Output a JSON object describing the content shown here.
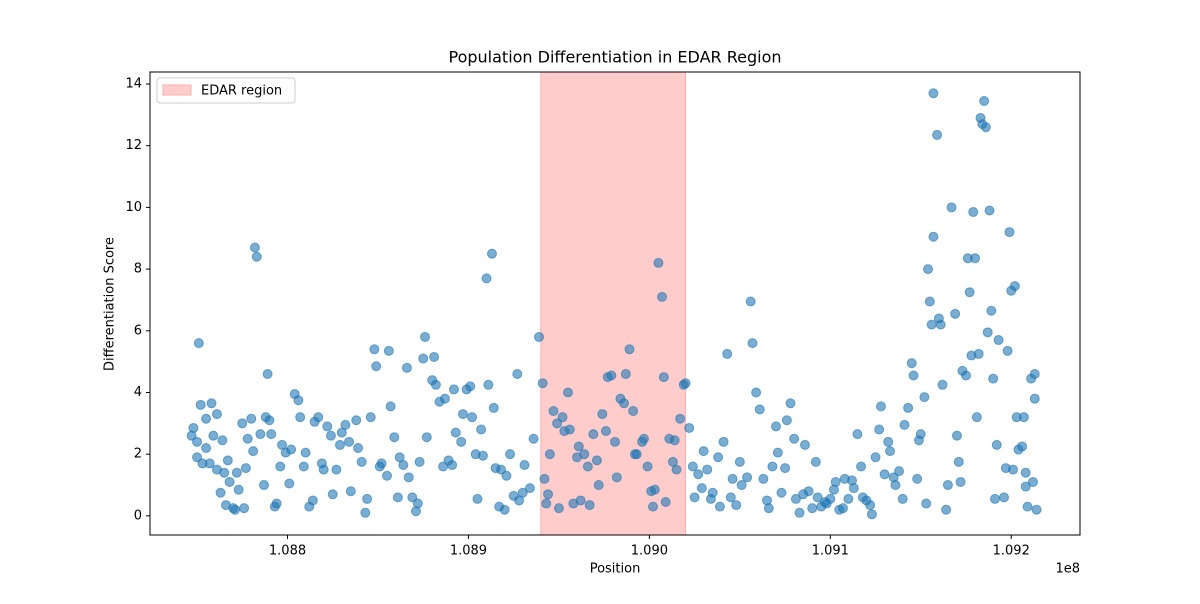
{
  "chart_data": {
    "type": "scatter",
    "title": "Population Differentiation in EDAR Region",
    "x_label": "Position",
    "y_label": "Differentiation Score",
    "x_offset_label": "1e8",
    "xlim": [
      108724000,
      109238000
    ],
    "ylim": [
      -0.62,
      14.39
    ],
    "xticks": [
      {
        "value": 108800000,
        "label": "1.088"
      },
      {
        "value": 108900000,
        "label": "1.089"
      },
      {
        "value": 109000000,
        "label": "1.090"
      },
      {
        "value": 109100000,
        "label": "1.091"
      },
      {
        "value": 109200000,
        "label": "1.092"
      }
    ],
    "yticks": [
      0,
      2,
      4,
      6,
      8,
      10,
      12,
      14
    ],
    "legend": "upper left",
    "region": {
      "name": "EDAR region",
      "start": 108940000,
      "end": 109020000,
      "color": "#ffcccc",
      "edge": "#f4b0b0"
    },
    "series": [
      {
        "color": "#1f77b4",
        "x": [
          108747000,
          108748000,
          108750000,
          108751000,
          108750000,
          108752000,
          108753000,
          108755000,
          108755000,
          108757000,
          108758000,
          108759000,
          108761000,
          108761000,
          108763000,
          108764000,
          108765000,
          108766000,
          108767000,
          108768000,
          108770000,
          108771000,
          108772000,
          108773000,
          108775000,
          108776000,
          108777000,
          108778000,
          108780000,
          108781000,
          108782000,
          108783000,
          108785000,
          108787000,
          108788000,
          108789000,
          108790000,
          108791000,
          108793000,
          108794000,
          108796000,
          108797000,
          108799000,
          108801000,
          108802000,
          108804000,
          108806000,
          108807000,
          108809000,
          108810000,
          108812000,
          108814000,
          108815000,
          108817000,
          108819000,
          108820000,
          108822000,
          108824000,
          108825000,
          108827000,
          108829000,
          108830000,
          108832000,
          108834000,
          108835000,
          108838000,
          108839000,
          108841000,
          108843000,
          108844000,
          108846000,
          108848000,
          108849000,
          108851000,
          108852000,
          108855000,
          108856000,
          108857000,
          108859000,
          108861000,
          108862000,
          108864000,
          108866000,
          108867000,
          108869000,
          108871000,
          108872000,
          108873000,
          108875000,
          108876000,
          108877000,
          108880000,
          108881000,
          108882000,
          108884000,
          108886000,
          108887000,
          108889000,
          108891000,
          108892000,
          108893000,
          108896000,
          108897000,
          108899000,
          108901000,
          108902000,
          108904000,
          108905000,
          108907000,
          108908000,
          108910000,
          108911000,
          108913000,
          108914000,
          108915000,
          108917000,
          108918000,
          108920000,
          108921000,
          108923000,
          108925000,
          108927000,
          108928000,
          108930000,
          108931000,
          108934000,
          108936000,
          108939000,
          108941000,
          108942000,
          108943000,
          108944000,
          108945000,
          108947000,
          108949000,
          108950000,
          108952000,
          108953000,
          108955000,
          108956000,
          108958000,
          108960000,
          108961000,
          108962000,
          108964000,
          108966000,
          108967000,
          108969000,
          108971000,
          108972000,
          108974000,
          108976000,
          108977000,
          108979000,
          108981000,
          108982000,
          108984000,
          108986000,
          108987000,
          108989000,
          108991000,
          108992000,
          108993000,
          108996000,
          108997000,
          108999000,
          109001000,
          109002000,
          109003000,
          109005000,
          109007000,
          109008000,
          109009000,
          109011000,
          109013000,
          109014000,
          109015000,
          109017000,
          109019000,
          109020000,
          109022000,
          109024000,
          109025000,
          109027000,
          109029000,
          109030000,
          109032000,
          109034000,
          109035000,
          109038000,
          109039000,
          109041000,
          109043000,
          109045000,
          109046000,
          109048000,
          109050000,
          109051000,
          109054000,
          109056000,
          109057000,
          109059000,
          109061000,
          109063000,
          109065000,
          109066000,
          109068000,
          109070000,
          109071000,
          109073000,
          109075000,
          109076000,
          109078000,
          109080000,
          109081000,
          109083000,
          109085000,
          109086000,
          109088000,
          109090000,
          109092000,
          109093000,
          109095000,
          109097000,
          109098000,
          109100000,
          109102000,
          109103000,
          109105000,
          109107000,
          109108000,
          109110000,
          109112000,
          109113000,
          109115000,
          109117000,
          109118000,
          109120000,
          109122000,
          109123000,
          109125000,
          109127000,
          109128000,
          109130000,
          109132000,
          109133000,
          109135000,
          109136000,
          109138000,
          109140000,
          109141000,
          109143000,
          109145000,
          109146000,
          109148000,
          109149000,
          109150000,
          109152000,
          109153000,
          109154000,
          109155000,
          109156000,
          109157000,
          109157000,
          109159000,
          109160000,
          109161000,
          109162000,
          109164000,
          109165000,
          109167000,
          109169000,
          109170000,
          109171000,
          109172000,
          109173000,
          109175000,
          109176000,
          109177000,
          109178000,
          109179000,
          109180000,
          109181000,
          109182000,
          109183000,
          109184000,
          109185000,
          109186000,
          109187000,
          109188000,
          109189000,
          109190000,
          109191000,
          109192000,
          109193000,
          109196000,
          109197000,
          109198000,
          109199000,
          109200000,
          109201000,
          109202000,
          109203000,
          109204000,
          109206000,
          109207000,
          109208000,
          109208000,
          109209000,
          109211000,
          109212000,
          109213000,
          109213000,
          109214000
        ],
        "values": [
          2.6,
          2.85,
          1.9,
          5.6,
          2.4,
          3.6,
          1.7,
          3.15,
          2.2,
          1.7,
          3.65,
          2.6,
          3.3,
          1.5,
          0.75,
          2.45,
          1.4,
          0.35,
          1.8,
          1.1,
          0.25,
          0.2,
          1.4,
          0.85,
          3.0,
          0.25,
          1.55,
          2.5,
          3.15,
          2.1,
          8.7,
          8.4,
          2.65,
          1.0,
          3.2,
          4.6,
          3.1,
          2.65,
          0.3,
          0.4,
          1.6,
          2.3,
          2.05,
          1.05,
          2.15,
          3.95,
          3.75,
          3.2,
          1.6,
          2.05,
          0.3,
          0.5,
          3.05,
          3.2,
          1.7,
          1.5,
          2.9,
          2.6,
          0.7,
          1.5,
          2.3,
          2.7,
          2.95,
          2.4,
          0.8,
          3.1,
          2.2,
          1.75,
          0.1,
          0.55,
          3.2,
          5.4,
          4.85,
          1.6,
          1.7,
          1.3,
          5.35,
          3.55,
          2.55,
          0.6,
          1.9,
          1.65,
          4.8,
          1.25,
          0.6,
          0.15,
          0.4,
          1.75,
          5.1,
          5.8,
          2.55,
          4.4,
          5.15,
          4.25,
          3.7,
          1.6,
          3.8,
          1.8,
          1.65,
          4.1,
          2.7,
          2.4,
          3.3,
          4.1,
          4.2,
          3.2,
          2.0,
          0.55,
          2.8,
          1.95,
          7.7,
          4.25,
          8.5,
          3.5,
          1.55,
          0.3,
          1.5,
          0.2,
          1.3,
          2.0,
          0.65,
          4.6,
          0.5,
          0.75,
          1.65,
          0.9,
          2.5,
          5.8,
          4.3,
          1.2,
          0.4,
          0.7,
          2.0,
          3.4,
          3.0,
          0.25,
          3.2,
          2.75,
          4.0,
          2.8,
          0.4,
          1.9,
          2.25,
          0.5,
          2.0,
          1.6,
          0.35,
          2.65,
          1.8,
          1.0,
          3.3,
          2.75,
          4.5,
          4.55,
          2.4,
          1.25,
          3.8,
          3.65,
          4.6,
          5.4,
          3.4,
          2.0,
          2.0,
          2.4,
          2.5,
          1.6,
          0.8,
          0.3,
          0.85,
          8.2,
          7.1,
          4.5,
          0.45,
          2.5,
          1.75,
          2.45,
          1.5,
          3.15,
          4.25,
          4.3,
          2.85,
          1.6,
          0.6,
          1.35,
          0.9,
          2.1,
          1.5,
          0.55,
          0.75,
          1.9,
          0.3,
          2.4,
          5.25,
          0.6,
          1.2,
          0.35,
          1.75,
          1.0,
          1.25,
          6.95,
          5.6,
          4.0,
          3.45,
          1.2,
          0.5,
          0.25,
          1.6,
          2.9,
          2.05,
          0.75,
          1.55,
          3.1,
          3.65,
          2.5,
          0.55,
          0.1,
          0.7,
          2.3,
          0.8,
          0.25,
          1.75,
          0.6,
          0.3,
          0.45,
          0.4,
          0.55,
          0.85,
          1.1,
          0.2,
          0.25,
          1.2,
          0.55,
          1.15,
          0.9,
          2.65,
          1.6,
          0.6,
          0.5,
          0.35,
          0.05,
          1.9,
          2.8,
          3.55,
          1.35,
          2.4,
          2.1,
          1.25,
          1.0,
          1.45,
          0.55,
          2.95,
          3.5,
          4.95,
          4.55,
          1.2,
          2.45,
          2.65,
          3.85,
          0.4,
          8.0,
          6.95,
          6.2,
          9.05,
          13.7,
          12.35,
          6.4,
          6.2,
          4.25,
          0.2,
          1.0,
          10.0,
          6.55,
          2.6,
          1.75,
          1.1,
          4.7,
          4.55,
          8.35,
          7.25,
          5.2,
          9.85,
          8.35,
          3.2,
          5.25,
          12.9,
          12.7,
          13.45,
          12.6,
          5.95,
          9.9,
          6.65,
          4.45,
          0.55,
          2.3,
          5.7,
          0.6,
          1.55,
          5.35,
          9.2,
          7.3,
          1.5,
          7.45,
          3.2,
          2.15,
          2.25,
          3.2,
          0.95,
          1.4,
          0.3,
          4.45,
          1.1,
          3.8,
          4.6,
          0.2
        ]
      }
    ]
  }
}
